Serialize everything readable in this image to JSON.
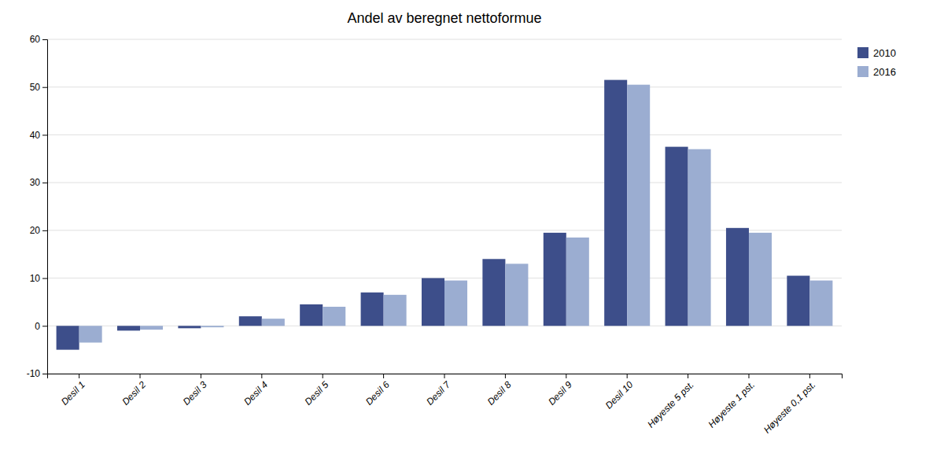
{
  "chart_data": {
    "type": "bar",
    "title": "Andel av beregnet nettoformue",
    "categories": [
      "Desil 1",
      "Desil 2",
      "Desil 3",
      "Desil 4",
      "Desil 5",
      "Desil 6",
      "Desil 7",
      "Desil 8",
      "Desil 9",
      "Desil 10",
      "Høyeste 5 pst.",
      "Høyeste 1 pst.",
      "Høyeste 0,1 pst."
    ],
    "series": [
      {
        "name": "2010",
        "color": "#3d4e8a",
        "values": [
          -5.0,
          -1.0,
          -0.5,
          2.0,
          4.5,
          7.0,
          10.0,
          14.0,
          19.5,
          51.5,
          37.5,
          20.5,
          10.5
        ]
      },
      {
        "name": "2016",
        "color": "#9badd1",
        "values": [
          -3.5,
          -0.8,
          -0.3,
          1.5,
          4.0,
          6.5,
          9.5,
          13.0,
          18.5,
          50.5,
          37.0,
          19.5,
          9.5
        ]
      }
    ],
    "ylim": [
      -10,
      60
    ],
    "yticks": [
      -10,
      0,
      10,
      20,
      30,
      40,
      50,
      60
    ],
    "grid": true,
    "legend": "upper right"
  }
}
